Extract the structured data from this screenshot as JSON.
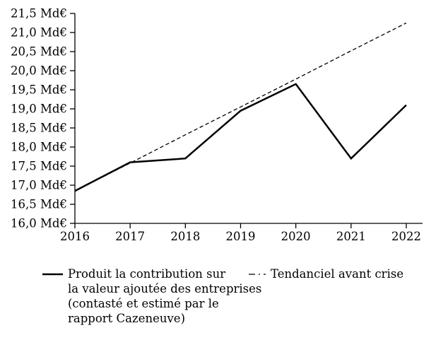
{
  "chart_data": {
    "type": "line",
    "x": [
      2016,
      2017,
      2018,
      2019,
      2020,
      2021,
      2022
    ],
    "x_labels": [
      "2016",
      "2017",
      "2018",
      "2019",
      "2020",
      "2021",
      "2022"
    ],
    "series": [
      {
        "name": "Produit la contribution sur la valeur ajoutée des entreprises (contasté et estimé par le rapport Cazeneuve)",
        "style": "solid",
        "color": "#000000",
        "values": [
          16.85,
          17.6,
          17.7,
          18.95,
          19.65,
          17.7,
          19.1
        ]
      },
      {
        "name": "Tendanciel avant crise",
        "style": "dashed",
        "color": "#000000",
        "values": [
          16.85,
          17.58,
          18.32,
          19.05,
          19.78,
          20.52,
          21.25
        ]
      }
    ],
    "title": "",
    "xlabel": "",
    "ylabel": "",
    "unit": "Md€",
    "ylim": [
      16.0,
      21.5
    ],
    "y_tick_step": 0.5,
    "y_tick_labels_top_down": [
      "21,5 Md€",
      "21,0 Md€",
      "20,5 Md€",
      "20,0 Md€",
      "19,5 Md€",
      "19,0 Md€",
      "18,5 Md€",
      "18,0 Md€",
      "17,5 Md€",
      "17,0 Md€",
      "16,5 Md€",
      "16,0 Md€"
    ],
    "grid": false,
    "legend_position": "bottom"
  },
  "legend": {
    "items": [
      {
        "marker": "solid-line",
        "lines": [
          "Produit la contribution sur",
          "la valeur ajoutée des entreprises",
          "(contasté et estimé par le",
          "rapport Cazeneuve)"
        ]
      },
      {
        "marker": "dashed-line",
        "lines": [
          "Tendanciel avant crise"
        ]
      }
    ]
  },
  "colors": {
    "line": "#000000",
    "background": "#ffffff",
    "text": "#000000"
  }
}
